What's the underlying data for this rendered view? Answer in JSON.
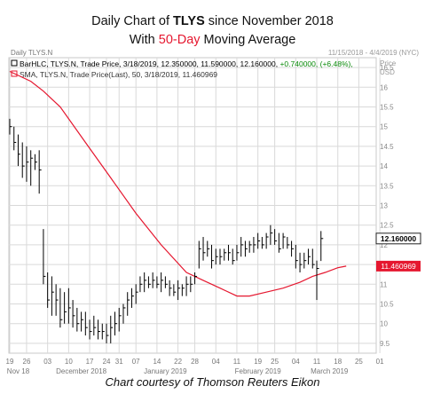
{
  "title": {
    "prefix": "Daily Chart of",
    "ticker": "TLYS",
    "suffix": "since November 2018",
    "line2_prefix": "With",
    "line2_highlight": "50-Day",
    "line2_suffix": "Moving Average"
  },
  "footer": "Chart courtesy of Thomson Reuters Eikon",
  "chart_data": {
    "type": "ohlc",
    "symbol_label": "Daily TLYS.N",
    "date_range": "11/15/2018 - 4/4/2019 (NYC)",
    "price_label": "Price",
    "currency_label": "USD",
    "legend": [
      {
        "text": "BarHLC, TLYS.N, Trade Price,  3/18/2019,  12.350000,  11.590000,  12.160000,",
        "change": "+0.740000,  (+6.48%),",
        "color": "#000000"
      },
      {
        "text": "SMA, TLYS.N, Trade Price(Last),  50,  3/18/2019,  11.460969",
        "color": "#e5172f"
      }
    ],
    "y_range": [
      9.25,
      16.75
    ],
    "y_ticks": [
      "9.5",
      "10",
      "10.5",
      "11",
      "11.5",
      "12",
      "12.5",
      "13",
      "13.5",
      "14",
      "14.5",
      "15",
      "15.5",
      "16",
      "16.5"
    ],
    "last_price_tag": "12.160000",
    "sma_tag": "11.460969",
    "x_ticks": [
      {
        "label": "19",
        "i": 0
      },
      {
        "label": "26",
        "i": 4
      },
      {
        "label": "03",
        "i": 9
      },
      {
        "label": "10",
        "i": 14
      },
      {
        "label": "17",
        "i": 19
      },
      {
        "label": "24",
        "i": 23
      },
      {
        "label": "31",
        "i": 26
      },
      {
        "label": "07",
        "i": 30
      },
      {
        "label": "14",
        "i": 35
      },
      {
        "label": "22",
        "i": 40
      },
      {
        "label": "28",
        "i": 44
      },
      {
        "label": "04",
        "i": 49
      },
      {
        "label": "11",
        "i": 54
      },
      {
        "label": "19",
        "i": 59
      },
      {
        "label": "25",
        "i": 63
      },
      {
        "label": "04",
        "i": 68
      },
      {
        "label": "11",
        "i": 73
      },
      {
        "label": "18",
        "i": 78
      },
      {
        "label": "25",
        "i": 83
      },
      {
        "label": "01",
        "i": 88
      }
    ],
    "month_labels": [
      {
        "label": "Nov 18",
        "i": 2
      },
      {
        "label": "December 2018",
        "i": 17
      },
      {
        "label": "January 2019",
        "i": 37
      },
      {
        "label": "February 2019",
        "i": 59
      },
      {
        "label": "March 2019",
        "i": 76
      }
    ],
    "bars": [
      [
        15.2,
        14.8,
        15.0
      ],
      [
        15.0,
        14.4,
        14.6
      ],
      [
        14.8,
        14.0,
        14.3
      ],
      [
        14.6,
        13.7,
        14.0
      ],
      [
        14.5,
        13.6,
        14.1
      ],
      [
        14.4,
        13.5,
        14.2
      ],
      [
        14.3,
        13.9,
        14.1
      ],
      [
        14.4,
        13.3,
        13.9
      ],
      [
        12.4,
        11.0,
        11.2
      ],
      [
        11.3,
        10.4,
        10.6
      ],
      [
        11.2,
        10.2,
        10.8
      ],
      [
        11.0,
        10.2,
        10.6
      ],
      [
        10.9,
        9.9,
        10.1
      ],
      [
        10.8,
        10.0,
        10.3
      ],
      [
        10.9,
        10.0,
        10.4
      ],
      [
        10.6,
        9.9,
        10.2
      ],
      [
        10.4,
        9.8,
        10.0
      ],
      [
        10.3,
        9.8,
        10.1
      ],
      [
        10.3,
        9.7,
        9.9
      ],
      [
        10.1,
        9.6,
        9.8
      ],
      [
        10.2,
        9.7,
        9.9
      ],
      [
        10.1,
        9.6,
        9.8
      ],
      [
        10.0,
        9.6,
        9.8
      ],
      [
        10.0,
        9.5,
        9.7
      ],
      [
        10.2,
        9.5,
        9.9
      ],
      [
        10.3,
        9.7,
        10.0
      ],
      [
        10.4,
        9.8,
        10.2
      ],
      [
        10.5,
        10.0,
        10.4
      ],
      [
        10.8,
        10.2,
        10.6
      ],
      [
        10.9,
        10.4,
        10.7
      ],
      [
        11.0,
        10.5,
        10.8
      ],
      [
        11.2,
        10.8,
        11.0
      ],
      [
        11.3,
        10.8,
        11.1
      ],
      [
        11.2,
        10.9,
        11.0
      ],
      [
        11.3,
        10.9,
        11.1
      ],
      [
        11.2,
        10.9,
        11.0
      ],
      [
        11.3,
        10.8,
        11.1
      ],
      [
        11.2,
        10.9,
        11.0
      ],
      [
        11.1,
        10.7,
        10.9
      ],
      [
        11.0,
        10.7,
        10.8
      ],
      [
        11.1,
        10.6,
        10.9
      ],
      [
        11.0,
        10.7,
        10.9
      ],
      [
        11.2,
        10.7,
        11.0
      ],
      [
        11.2,
        10.8,
        11.0
      ],
      [
        11.3,
        11.0,
        11.2
      ],
      [
        12.1,
        11.4,
        11.9
      ],
      [
        12.2,
        11.6,
        11.8
      ],
      [
        12.1,
        11.7,
        11.9
      ],
      [
        12.0,
        11.4,
        11.6
      ],
      [
        11.9,
        11.5,
        11.7
      ],
      [
        11.9,
        11.5,
        11.7
      ],
      [
        11.9,
        11.6,
        11.8
      ],
      [
        12.0,
        11.6,
        11.8
      ],
      [
        11.9,
        11.5,
        11.6
      ],
      [
        12.0,
        11.6,
        11.8
      ],
      [
        12.2,
        11.7,
        12.0
      ],
      [
        12.1,
        11.7,
        11.9
      ],
      [
        12.1,
        11.8,
        12.0
      ],
      [
        12.2,
        11.8,
        12.0
      ],
      [
        12.3,
        11.9,
        12.1
      ],
      [
        12.2,
        11.9,
        12.0
      ],
      [
        12.3,
        11.9,
        12.2
      ],
      [
        12.5,
        12.0,
        12.3
      ],
      [
        12.4,
        12.0,
        12.1
      ],
      [
        12.3,
        11.8,
        11.9
      ],
      [
        12.3,
        11.9,
        12.2
      ],
      [
        12.2,
        11.9,
        12.0
      ],
      [
        12.1,
        11.7,
        11.9
      ],
      [
        12.0,
        11.4,
        11.6
      ],
      [
        11.8,
        11.3,
        11.5
      ],
      [
        11.8,
        11.4,
        11.6
      ],
      [
        11.9,
        11.5,
        11.7
      ],
      [
        11.9,
        11.4,
        11.5
      ],
      [
        11.6,
        10.6,
        11.4
      ],
      [
        12.35,
        11.59,
        12.16
      ]
    ],
    "sma": [
      [
        0,
        16.4
      ],
      [
        5,
        16.15
      ],
      [
        8,
        15.9
      ],
      [
        12,
        15.5
      ],
      [
        18,
        14.6
      ],
      [
        24,
        13.7
      ],
      [
        30,
        12.8
      ],
      [
        36,
        12.0
      ],
      [
        42,
        11.3
      ],
      [
        46,
        11.1
      ],
      [
        50,
        10.9
      ],
      [
        54,
        10.7
      ],
      [
        57,
        10.7
      ],
      [
        61,
        10.8
      ],
      [
        65,
        10.9
      ],
      [
        69,
        11.05
      ],
      [
        72,
        11.2
      ],
      [
        75,
        11.3
      ],
      [
        78,
        11.42
      ],
      [
        80,
        11.46
      ]
    ],
    "grid": true
  }
}
